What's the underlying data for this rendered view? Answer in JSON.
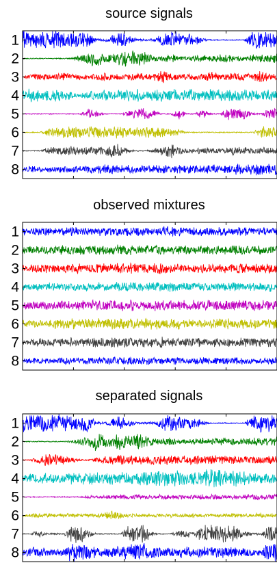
{
  "chart_data": [
    {
      "type": "line",
      "title": "source signals",
      "xlabel": "",
      "ylabel": "",
      "y_tick_labels": [
        "1",
        "2",
        "3",
        "4",
        "5",
        "6",
        "7",
        "8"
      ],
      "grid": false,
      "series": [
        {
          "color": "#0000ff",
          "envelope": [
            0.9,
            0.9,
            0.85,
            0.9,
            0.85,
            0.8,
            0.7,
            0.9,
            0.85,
            0.15,
            0.1,
            0.5,
            0.8,
            0.4,
            0.1,
            0.1,
            0.15,
            0.6,
            0.85,
            0.7,
            0.5,
            0.7,
            0.2,
            0.05,
            0.05,
            0.05,
            0.05,
            0.05,
            0.8,
            0.85,
            0.8,
            0.85
          ]
        },
        {
          "color": "#008000",
          "envelope": [
            0.05,
            0.05,
            0.05,
            0.05,
            0.05,
            0.05,
            0.1,
            0.4,
            0.6,
            0.9,
            0.5,
            0.6,
            1.0,
            0.7,
            0.9,
            0.6,
            0.3,
            0.3,
            0.4,
            0.3,
            0.2,
            0.3,
            0.35,
            0.3,
            0.4,
            0.35,
            0.3,
            0.3,
            0.4,
            0.35,
            0.4,
            0.45
          ]
        },
        {
          "color": "#ff0000",
          "envelope": [
            0.1,
            0.3,
            0.35,
            0.3,
            0.25,
            0.45,
            0.35,
            0.3,
            0.25,
            0.3,
            0.5,
            0.35,
            0.3,
            0.35,
            0.4,
            0.3,
            0.3,
            0.75,
            0.35,
            0.3,
            0.35,
            0.3,
            0.3,
            0.5,
            0.3,
            0.3,
            0.45,
            0.3,
            0.3,
            0.7,
            0.35,
            0.3
          ]
        },
        {
          "color": "#00bfbf",
          "envelope": [
            0.6,
            0.6,
            0.6,
            0.6,
            0.6,
            0.5,
            0.35,
            0.15,
            0.5,
            0.6,
            0.55,
            0.6,
            0.6,
            0.6,
            0.6,
            0.55,
            0.6,
            0.6,
            0.6,
            0.6,
            0.55,
            0.6,
            0.6,
            0.6,
            0.6,
            0.55,
            0.6,
            0.6,
            0.6,
            0.55,
            0.6,
            0.55
          ]
        },
        {
          "color": "#bf00bf",
          "envelope": [
            0.05,
            0.05,
            0.05,
            0.05,
            0.05,
            0.05,
            0.05,
            0.05,
            0.5,
            0.3,
            0.05,
            0.05,
            0.05,
            0.3,
            0.6,
            0.6,
            0.4,
            0.05,
            0.05,
            0.6,
            0.05,
            0.05,
            0.5,
            0.05,
            0.05,
            0.6,
            0.65,
            0.6,
            0.1,
            0.05,
            0.5,
            0.55
          ]
        },
        {
          "color": "#bfbf00",
          "envelope": [
            0.05,
            0.05,
            0.05,
            0.3,
            0.5,
            0.55,
            0.6,
            0.55,
            0.55,
            0.6,
            0.5,
            0.55,
            0.6,
            0.55,
            0.5,
            0.55,
            0.6,
            0.55,
            0.55,
            0.3,
            0.05,
            0.05,
            0.05,
            0.05,
            0.05,
            0.05,
            0.05,
            0.05,
            0.05,
            0.6,
            0.6,
            0.55
          ]
        },
        {
          "color": "#404040",
          "envelope": [
            0.05,
            0.05,
            0.05,
            0.3,
            0.4,
            0.45,
            0.45,
            0.4,
            0.4,
            0.45,
            0.4,
            0.8,
            0.5,
            0.15,
            0.05,
            0.05,
            0.2,
            0.45,
            0.7,
            0.5,
            0.2,
            0.2,
            0.35,
            0.3,
            0.25,
            0.3,
            0.5,
            0.35,
            0.3,
            0.3,
            0.4,
            0.35
          ]
        },
        {
          "color": "#0000ff",
          "envelope": [
            0.3,
            0.3,
            0.3,
            0.3,
            0.3,
            0.35,
            0.35,
            0.3,
            0.35,
            0.4,
            0.45,
            0.4,
            0.45,
            0.45,
            0.4,
            0.45,
            0.45,
            0.45,
            0.4,
            0.45,
            0.45,
            0.5,
            0.5,
            0.45,
            0.5,
            0.55,
            0.5,
            0.5,
            0.55,
            0.6,
            0.55,
            0.6
          ]
        }
      ]
    },
    {
      "type": "line",
      "title": "observed mixtures",
      "xlabel": "",
      "ylabel": "",
      "y_tick_labels": [
        "1",
        "2",
        "3",
        "4",
        "5",
        "6",
        "7",
        "8"
      ],
      "grid": false,
      "series": [
        {
          "color": "#0000ff",
          "envelope": [
            0.35,
            0.35,
            0.4,
            0.4,
            0.35,
            0.4,
            0.45,
            0.4,
            0.4,
            0.45,
            0.4,
            0.45,
            0.5,
            0.4,
            0.45,
            0.4,
            0.4,
            0.55,
            0.45,
            0.45,
            0.4,
            0.45,
            0.4,
            0.4,
            0.45,
            0.4,
            0.4,
            0.45,
            0.4,
            0.4,
            0.45,
            0.4
          ]
        },
        {
          "color": "#008000",
          "envelope": [
            0.35,
            0.4,
            0.4,
            0.4,
            0.4,
            0.45,
            0.4,
            0.45,
            0.45,
            0.5,
            0.45,
            0.5,
            0.55,
            0.5,
            0.45,
            0.45,
            0.45,
            0.5,
            0.45,
            0.45,
            0.45,
            0.45,
            0.45,
            0.4,
            0.45,
            0.4,
            0.45,
            0.45,
            0.45,
            0.4,
            0.45,
            0.45
          ]
        },
        {
          "color": "#ff0000",
          "envelope": [
            0.35,
            0.4,
            0.4,
            0.45,
            0.4,
            0.45,
            0.45,
            0.45,
            0.45,
            0.5,
            0.5,
            0.55,
            0.55,
            0.5,
            0.45,
            0.45,
            0.5,
            0.55,
            0.5,
            0.5,
            0.45,
            0.45,
            0.5,
            0.45,
            0.5,
            0.45,
            0.5,
            0.5,
            0.45,
            0.5,
            0.5,
            0.45
          ]
        },
        {
          "color": "#00bfbf",
          "envelope": [
            0.35,
            0.35,
            0.4,
            0.4,
            0.4,
            0.4,
            0.4,
            0.4,
            0.4,
            0.45,
            0.45,
            0.5,
            0.5,
            0.45,
            0.45,
            0.4,
            0.45,
            0.45,
            0.45,
            0.4,
            0.4,
            0.4,
            0.45,
            0.4,
            0.4,
            0.4,
            0.45,
            0.4,
            0.4,
            0.4,
            0.45,
            0.4
          ]
        },
        {
          "color": "#bf00bf",
          "envelope": [
            0.35,
            0.4,
            0.4,
            0.45,
            0.45,
            0.45,
            0.45,
            0.45,
            0.5,
            0.5,
            0.5,
            0.55,
            0.6,
            0.55,
            0.5,
            0.5,
            0.5,
            0.55,
            0.55,
            0.5,
            0.5,
            0.5,
            0.5,
            0.5,
            0.5,
            0.5,
            0.55,
            0.5,
            0.5,
            0.5,
            0.5,
            0.5
          ]
        },
        {
          "color": "#bfbf00",
          "envelope": [
            0.35,
            0.4,
            0.4,
            0.45,
            0.45,
            0.5,
            0.5,
            0.5,
            0.5,
            0.55,
            0.5,
            0.55,
            0.6,
            0.55,
            0.5,
            0.5,
            0.55,
            0.55,
            0.5,
            0.5,
            0.45,
            0.45,
            0.5,
            0.45,
            0.5,
            0.5,
            0.5,
            0.5,
            0.5,
            0.5,
            0.5,
            0.5
          ]
        },
        {
          "color": "#404040",
          "envelope": [
            0.35,
            0.35,
            0.4,
            0.4,
            0.4,
            0.4,
            0.45,
            0.4,
            0.45,
            0.45,
            0.45,
            0.5,
            0.5,
            0.45,
            0.45,
            0.45,
            0.45,
            0.5,
            0.45,
            0.45,
            0.4,
            0.45,
            0.45,
            0.45,
            0.45,
            0.45,
            0.45,
            0.45,
            0.45,
            0.45,
            0.45,
            0.45
          ]
        },
        {
          "color": "#0000ff",
          "envelope": [
            0.3,
            0.3,
            0.3,
            0.3,
            0.3,
            0.35,
            0.35,
            0.3,
            0.35,
            0.35,
            0.35,
            0.4,
            0.4,
            0.35,
            0.35,
            0.35,
            0.35,
            0.35,
            0.35,
            0.35,
            0.3,
            0.35,
            0.35,
            0.35,
            0.35,
            0.35,
            0.35,
            0.35,
            0.35,
            0.35,
            0.35,
            0.35
          ]
        }
      ]
    },
    {
      "type": "line",
      "title": "separated signals",
      "xlabel": "",
      "ylabel": "",
      "y_tick_labels": [
        "1",
        "2",
        "3",
        "4",
        "5",
        "6",
        "7",
        "8"
      ],
      "grid": false,
      "series": [
        {
          "color": "#0000ff",
          "envelope": [
            0.9,
            0.9,
            0.85,
            0.9,
            0.85,
            0.8,
            0.7,
            0.9,
            0.85,
            0.15,
            0.1,
            0.5,
            0.8,
            0.4,
            0.1,
            0.1,
            0.15,
            0.6,
            0.85,
            0.7,
            0.5,
            0.7,
            0.2,
            0.05,
            0.05,
            0.05,
            0.05,
            0.05,
            0.8,
            0.85,
            0.8,
            0.85
          ]
        },
        {
          "color": "#008000",
          "envelope": [
            0.05,
            0.05,
            0.05,
            0.05,
            0.05,
            0.05,
            0.1,
            0.4,
            0.6,
            0.9,
            0.5,
            0.6,
            1.0,
            0.7,
            0.9,
            0.6,
            0.3,
            0.3,
            0.4,
            0.3,
            0.2,
            0.3,
            0.35,
            0.3,
            0.4,
            0.35,
            0.3,
            0.3,
            0.4,
            0.35,
            0.4,
            0.45
          ]
        },
        {
          "color": "#ff0000",
          "envelope": [
            0.05,
            0.05,
            0.4,
            0.55,
            0.5,
            0.45,
            0.3,
            0.1,
            0.05,
            0.3,
            0.4,
            0.45,
            0.45,
            0.45,
            0.4,
            0.45,
            0.45,
            0.4,
            0.45,
            0.45,
            0.4,
            0.45,
            0.45,
            0.4,
            0.45,
            0.4,
            0.4,
            0.4,
            0.45,
            0.4,
            0.4,
            0.45
          ]
        },
        {
          "color": "#00bfbf",
          "envelope": [
            0.4,
            0.45,
            0.45,
            0.5,
            0.5,
            0.5,
            0.55,
            0.55,
            0.6,
            0.6,
            0.6,
            0.7,
            0.65,
            0.6,
            0.6,
            0.7,
            0.75,
            0.8,
            0.8,
            0.85,
            0.8,
            0.8,
            0.85,
            0.9,
            0.85,
            0.8,
            0.75,
            0.7,
            0.6,
            0.55,
            0.5,
            0.45
          ]
        },
        {
          "color": "#bf00bf",
          "envelope": [
            0.05,
            0.05,
            0.05,
            0.05,
            0.05,
            0.05,
            0.05,
            0.05,
            0.15,
            0.15,
            0.2,
            0.2,
            0.3,
            0.2,
            0.25,
            0.2,
            0.2,
            0.25,
            0.25,
            0.2,
            0.2,
            0.2,
            0.25,
            0.3,
            0.25,
            0.2,
            0.2,
            0.25,
            0.3,
            0.25,
            0.25,
            0.3
          ]
        },
        {
          "color": "#bfbf00",
          "envelope": [
            0.1,
            0.2,
            0.25,
            0.2,
            0.2,
            0.2,
            0.25,
            0.2,
            0.2,
            0.2,
            0.3,
            0.55,
            0.3,
            0.2,
            0.2,
            0.15,
            0.2,
            0.2,
            0.2,
            0.2,
            0.2,
            0.2,
            0.2,
            0.2,
            0.2,
            0.2,
            0.35,
            0.2,
            0.2,
            0.2,
            0.2,
            0.2
          ]
        },
        {
          "color": "#404040",
          "envelope": [
            0.05,
            0.05,
            0.4,
            0.1,
            0.1,
            0.05,
            0.8,
            0.9,
            0.5,
            0.05,
            0.05,
            0.05,
            0.05,
            0.9,
            0.9,
            0.85,
            0.15,
            0.05,
            0.05,
            0.3,
            0.35,
            0.2,
            0.85,
            0.85,
            0.85,
            0.85,
            0.9,
            0.3,
            0.15,
            0.1,
            0.85,
            0.9
          ]
        },
        {
          "color": "#0000ff",
          "envelope": [
            0.25,
            0.5,
            0.55,
            0.5,
            0.3,
            0.45,
            0.9,
            0.85,
            0.7,
            0.5,
            0.45,
            0.5,
            0.55,
            0.85,
            0.9,
            0.85,
            0.6,
            0.5,
            0.45,
            0.5,
            0.55,
            0.45,
            0.6,
            0.6,
            0.55,
            0.5,
            0.45,
            0.5,
            0.4,
            0.35,
            0.9,
            0.9
          ]
        }
      ]
    }
  ]
}
